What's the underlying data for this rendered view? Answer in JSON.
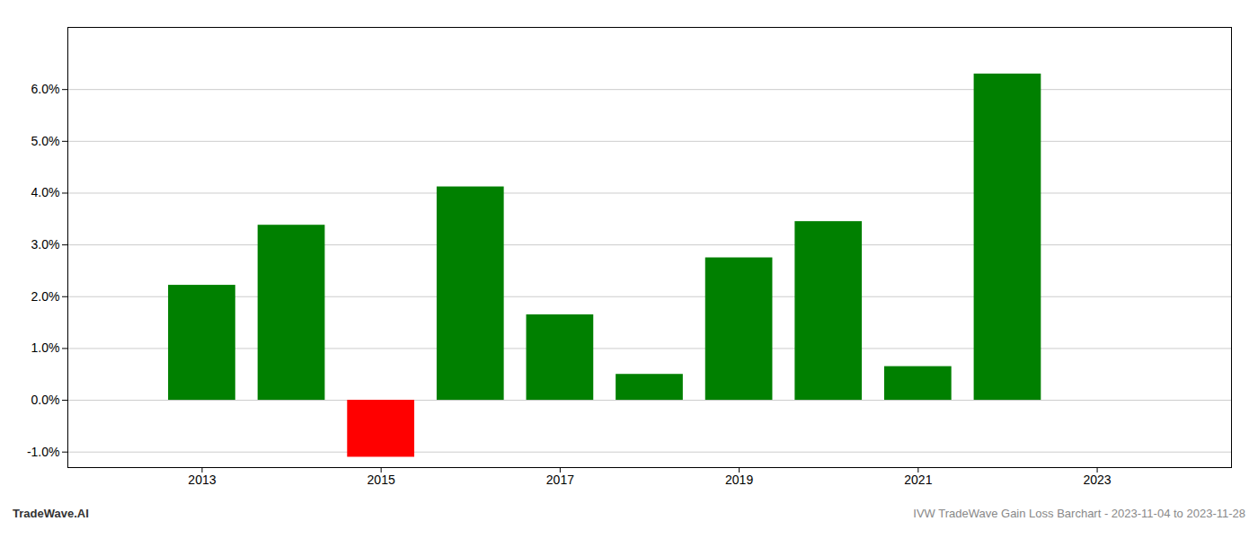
{
  "chart_data": {
    "type": "bar",
    "x": [
      2013,
      2014,
      2015,
      2016,
      2017,
      2018,
      2019,
      2020,
      2021,
      2022
    ],
    "values": [
      0.0222,
      0.0338,
      -0.011,
      0.0412,
      0.0165,
      0.005,
      0.0275,
      0.0345,
      0.0065,
      0.063
    ],
    "colors": [
      "#008000",
      "#008000",
      "#ff0000",
      "#008000",
      "#008000",
      "#008000",
      "#008000",
      "#008000",
      "#008000",
      "#008000"
    ],
    "xlim": [
      2011.5,
      2024.5
    ],
    "xticks": [
      2013,
      2015,
      2017,
      2019,
      2021,
      2023
    ],
    "ylim": [
      -0.013,
      0.072
    ],
    "yticks": [
      {
        "value": -0.01,
        "label": "-1.0%"
      },
      {
        "value": 0.0,
        "label": "0.0%"
      },
      {
        "value": 0.01,
        "label": "1.0%"
      },
      {
        "value": 0.02,
        "label": "2.0%"
      },
      {
        "value": 0.03,
        "label": "3.0%"
      },
      {
        "value": 0.04,
        "label": "4.0%"
      },
      {
        "value": 0.05,
        "label": "5.0%"
      },
      {
        "value": 0.06,
        "label": "6.0%"
      }
    ],
    "grid": true,
    "annotations": [
      "TradeWave.AI",
      "IVW TradeWave Gain Loss Barchart - 2023-11-04 to 2023-11-28"
    ]
  }
}
